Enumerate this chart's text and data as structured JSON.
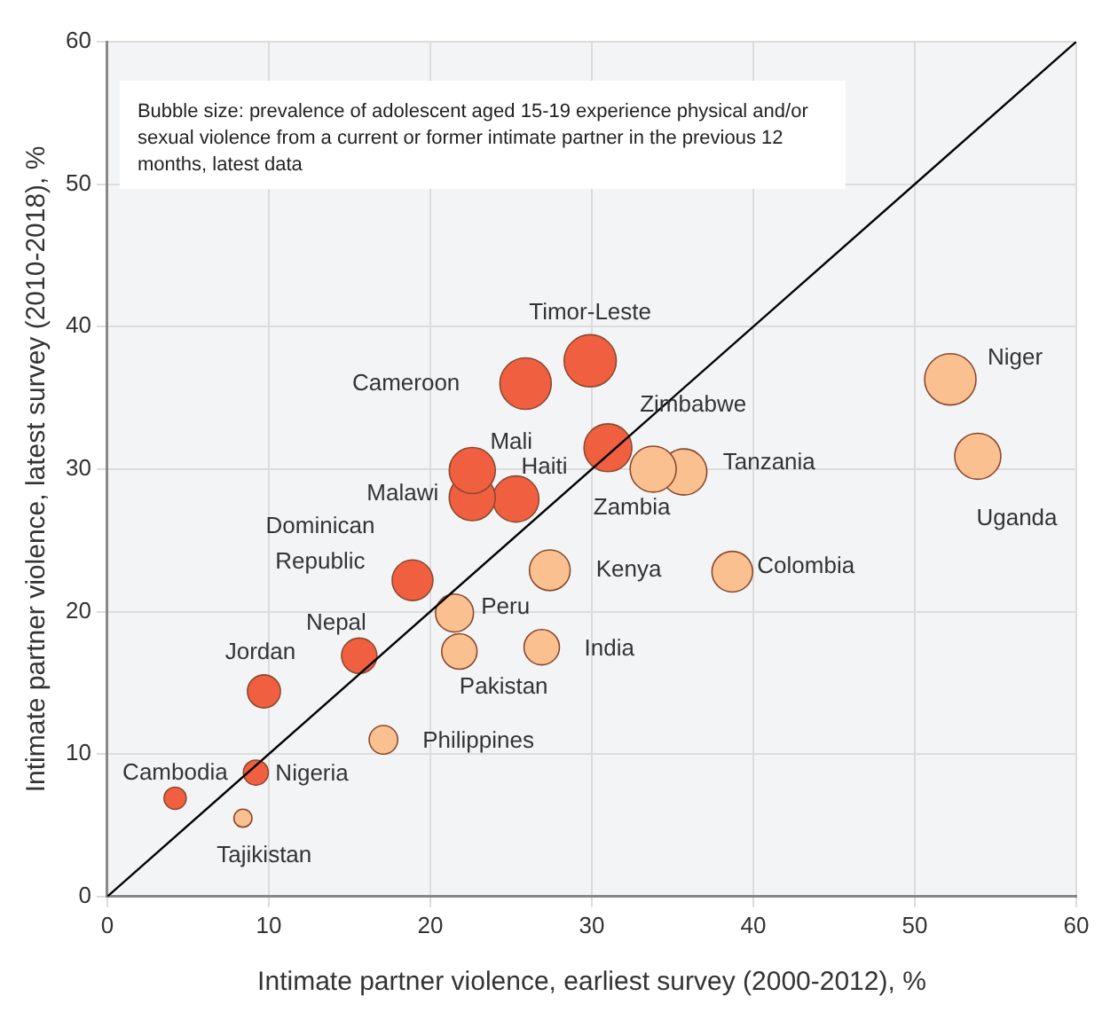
{
  "chart_data": {
    "type": "bubble",
    "xlabel": "Intimate partner violence, earliest survey (2000-2012), %",
    "ylabel": "Intimate partner violence, latest survey (2010-2018), %",
    "xlim": [
      0,
      60
    ],
    "xticks": [
      0,
      10,
      20,
      30,
      40,
      50,
      60
    ],
    "ylim": [
      0,
      60
    ],
    "yticks": [
      0,
      10,
      20,
      30,
      40,
      50,
      60
    ],
    "grid": true,
    "legend": false,
    "annotations": [
      "Bubble size: prevalence of adolescent aged 15-19 experience physical and/or sexual violence from a current or former intimate partner in the previous 12 months, latest data"
    ],
    "series": [
      {
        "name": "Timor-Leste",
        "color": "#f06040",
        "x": [
          29.9
        ],
        "values": [
          37.6
        ],
        "sizes": [
          1
        ]
      },
      {
        "name": "Cameroon",
        "color": "#f06040",
        "x": [
          25.9
        ],
        "values": [
          36.0
        ],
        "sizes": [
          0.97
        ]
      },
      {
        "name": "Mali",
        "color": "#f06040",
        "x": [
          22.6
        ],
        "values": [
          29.9
        ],
        "sizes": [
          0.78
        ]
      },
      {
        "name": "Malawi",
        "color": "#f06040",
        "x": [
          22.6
        ],
        "values": [
          28.0
        ],
        "sizes": [
          0.78
        ]
      },
      {
        "name": "Haiti",
        "color": "#f06040",
        "x": [
          25.3
        ],
        "values": [
          27.9
        ],
        "sizes": [
          0.78
        ]
      },
      {
        "name": "Dominican Republic",
        "color": "#f06040",
        "x": [
          18.9
        ],
        "values": [
          22.2
        ],
        "sizes": [
          0.61
        ]
      },
      {
        "name": "Kenya",
        "color": "#fac090",
        "x": [
          27.4
        ],
        "values": [
          22.9
        ],
        "sizes": [
          0.61
        ]
      },
      {
        "name": "Peru",
        "color": "#fac090",
        "x": [
          21.5
        ],
        "values": [
          19.9
        ],
        "sizes": [
          0.53
        ]
      },
      {
        "name": "Zimbabwe",
        "color": "#f06040",
        "x": [
          31.0
        ],
        "values": [
          31.5
        ],
        "sizes": [
          0.84
        ]
      },
      {
        "name": "Zambia",
        "color": "#fac090",
        "x": [
          33.8
        ],
        "values": [
          30.0
        ],
        "sizes": [
          0.78
        ]
      },
      {
        "name": "Tanzania",
        "color": "#fac090",
        "x": [
          35.7
        ],
        "values": [
          29.8
        ],
        "sizes": [
          0.78
        ]
      },
      {
        "name": "Niger",
        "color": "#fac090",
        "x": [
          52.2
        ],
        "values": [
          36.3
        ],
        "sizes": [
          0.97
        ]
      },
      {
        "name": "Uganda",
        "color": "#fac090",
        "x": [
          53.9
        ],
        "values": [
          30.9
        ],
        "sizes": [
          0.78
        ]
      },
      {
        "name": "Colombia",
        "color": "#fac090",
        "x": [
          38.7
        ],
        "values": [
          22.8
        ],
        "sizes": [
          0.61
        ]
      },
      {
        "name": "Nepal",
        "color": "#f06040",
        "x": [
          15.6
        ],
        "values": [
          16.9
        ],
        "sizes": [
          0.46
        ]
      },
      {
        "name": "Pakistan",
        "color": "#fac090",
        "x": [
          21.8
        ],
        "values": [
          17.2
        ],
        "sizes": [
          0.46
        ]
      },
      {
        "name": "India",
        "color": "#fac090",
        "x": [
          26.9
        ],
        "values": [
          17.5
        ],
        "sizes": [
          0.46
        ]
      },
      {
        "name": "Jordan",
        "color": "#f06040",
        "x": [
          9.7
        ],
        "values": [
          14.4
        ],
        "sizes": [
          0.4
        ]
      },
      {
        "name": "Philippines",
        "color": "#fac090",
        "x": [
          17.1
        ],
        "values": [
          11.0
        ],
        "sizes": [
          0.3
        ]
      },
      {
        "name": "Nigeria",
        "color": "#f06040",
        "x": [
          9.2
        ],
        "values": [
          8.7
        ],
        "sizes": [
          0.23
        ]
      },
      {
        "name": "Cambodia",
        "color": "#f06040",
        "x": [
          4.2
        ],
        "values": [
          6.9
        ],
        "sizes": [
          0.18
        ]
      },
      {
        "name": "Tajikistan",
        "color": "#fac090",
        "x": [
          8.4
        ],
        "values": [
          5.5
        ],
        "sizes": [
          0.12
        ]
      },
      {
        "type": "line",
        "color": "#000000",
        "x": [
          0,
          60
        ],
        "values": [
          0,
          60
        ]
      }
    ]
  }
}
